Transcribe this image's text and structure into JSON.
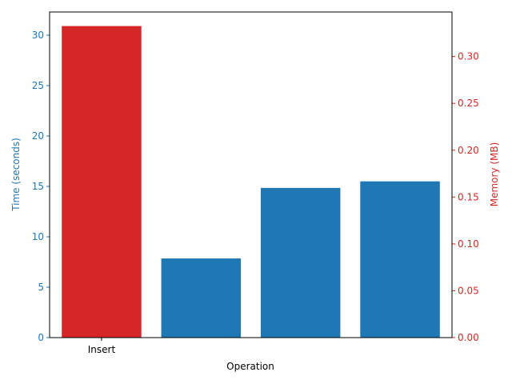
{
  "chart_data": {
    "type": "bar",
    "categories": [
      "Insert",
      "",
      "",
      ""
    ],
    "series": [
      {
        "axis": "left",
        "color": "#1f77b4",
        "values": [
          null,
          7.85,
          14.85,
          15.5
        ]
      },
      {
        "axis": "right",
        "color": "#d62728",
        "values": [
          0.3325,
          null,
          null,
          null
        ]
      }
    ],
    "xlabel": "Operation",
    "ylabel_left": "Time (seconds)",
    "ylabel_right": "Memory (MB)",
    "ylim_left": [
      0,
      32.3
    ],
    "ylim_right": [
      0,
      0.3475
    ],
    "yticks_left": [
      "0",
      "5",
      "10",
      "15",
      "20",
      "25",
      "30"
    ],
    "yticks_right": [
      "0.00",
      "0.05",
      "0.10",
      "0.15",
      "0.20",
      "0.25",
      "0.30"
    ],
    "left_axis_color": "#1f77b4",
    "right_axis_color": "#d62728",
    "grid": false,
    "legend": "none"
  }
}
